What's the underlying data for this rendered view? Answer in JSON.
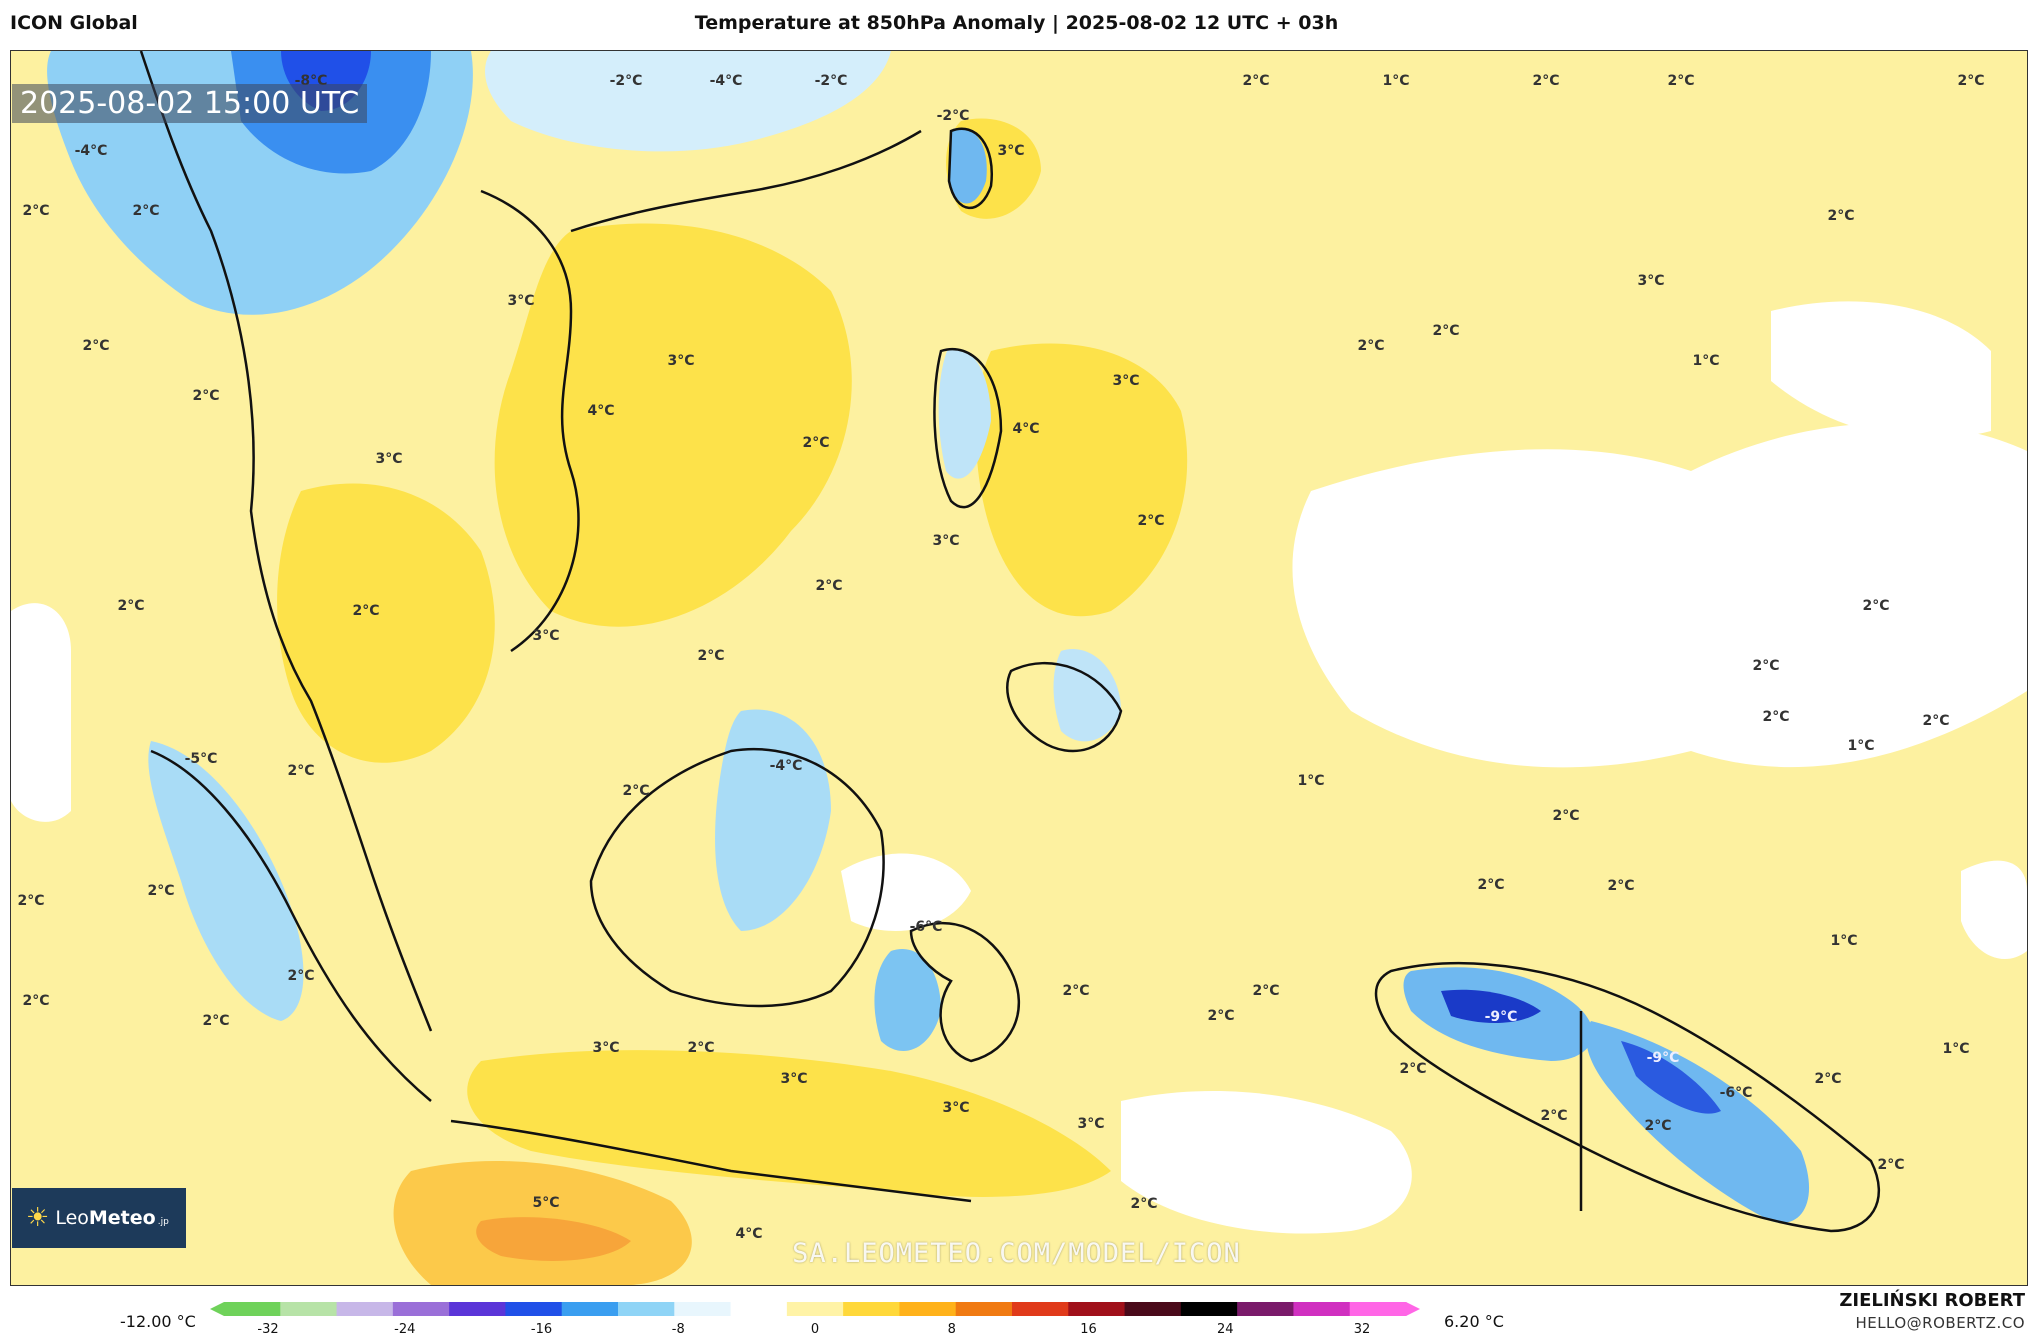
{
  "header": {
    "model_name": "ICON Global",
    "title": "Temperature at 850hPa Anomaly | 2025-08-02 12 UTC + 03h"
  },
  "map": {
    "valid_time": "2025-08-02 15:00 UTC",
    "logo_brand_light": "Leo",
    "logo_brand_bold": "Meteo",
    "logo_suffix": ".jp",
    "watermark": "SA.LEOMETEO.COM/MODEL/ICON",
    "labels": [
      {
        "text": "2°C"
      },
      {
        "text": "1°C"
      },
      {
        "text": "2°C"
      },
      {
        "text": "2°C"
      },
      {
        "text": "2°C"
      },
      {
        "text": "-2°C"
      },
      {
        "text": "-4°C"
      },
      {
        "text": "-2°C"
      },
      {
        "text": "-8°C"
      },
      {
        "text": "-2°C"
      },
      {
        "text": "3°C"
      },
      {
        "text": "-4°C"
      },
      {
        "text": "2°C"
      },
      {
        "text": "2°C"
      },
      {
        "text": "2°C"
      },
      {
        "text": "3°C"
      },
      {
        "text": "2°C"
      },
      {
        "text": "2°C"
      },
      {
        "text": "1°C"
      },
      {
        "text": "2°C"
      },
      {
        "text": "2°C"
      },
      {
        "text": "3°C"
      },
      {
        "text": "3°C"
      },
      {
        "text": "4°C"
      },
      {
        "text": "3°C"
      },
      {
        "text": "4°C"
      },
      {
        "text": "2°C"
      },
      {
        "text": "3°C"
      },
      {
        "text": "2°C"
      },
      {
        "text": "3°C"
      },
      {
        "text": "2°C"
      },
      {
        "text": "2°C"
      },
      {
        "text": "2°C"
      },
      {
        "text": "3°C"
      },
      {
        "text": "2°C"
      },
      {
        "text": "2°C"
      },
      {
        "text": "2°C"
      },
      {
        "text": "1°C"
      },
      {
        "text": "2°C"
      },
      {
        "text": "-5°C"
      },
      {
        "text": "2°C"
      },
      {
        "text": "2°C"
      },
      {
        "text": "-4°C"
      },
      {
        "text": "1°C"
      },
      {
        "text": "2°C"
      },
      {
        "text": "2°C"
      },
      {
        "text": "2°C"
      },
      {
        "text": "2°C"
      },
      {
        "text": "2°C"
      },
      {
        "text": "2°C"
      },
      {
        "text": "-6°C"
      },
      {
        "text": "2°C"
      },
      {
        "text": "2°C"
      },
      {
        "text": "1°C"
      },
      {
        "text": "2°C"
      },
      {
        "text": "2°C"
      },
      {
        "text": "2°C"
      },
      {
        "text": "2°C"
      },
      {
        "text": "3°C"
      },
      {
        "text": "2°C"
      },
      {
        "text": "3°C"
      },
      {
        "text": "3°C"
      },
      {
        "text": "3°C"
      },
      {
        "text": "-9°C"
      },
      {
        "text": "-9°C"
      },
      {
        "text": "-6°C"
      },
      {
        "text": "2°C"
      },
      {
        "text": "2°C"
      },
      {
        "text": "1°C"
      },
      {
        "text": "2°C"
      },
      {
        "text": "2°C"
      },
      {
        "text": "5°C"
      },
      {
        "text": "4°C"
      },
      {
        "text": "2°C"
      },
      {
        "text": "2°C"
      }
    ]
  },
  "colorbar": {
    "min_label": "-12.00 °C",
    "max_label": "6.20 °C",
    "ticks": [
      "-32",
      "-24",
      "-16",
      "-8",
      "0",
      "8",
      "16",
      "24",
      "32"
    ],
    "colors": [
      "#6fd25a",
      "#b7e3a7",
      "#c7b7e8",
      "#9a6fd8",
      "#5b35d8",
      "#2050e8",
      "#3a9ef0",
      "#8fd4f6",
      "#e8f6fd",
      "#ffffff",
      "#fff3a6",
      "#ffd83a",
      "#ffb21a",
      "#f07a12",
      "#e03a1a",
      "#a0101a",
      "#4a0a1a",
      "#000000",
      "#7a1a6a",
      "#d030c0",
      "#ff66e6"
    ]
  },
  "footer": {
    "author": "ZIELIŃSKI ROBERT",
    "email": "HELLO@ROBERTZ.CO"
  }
}
